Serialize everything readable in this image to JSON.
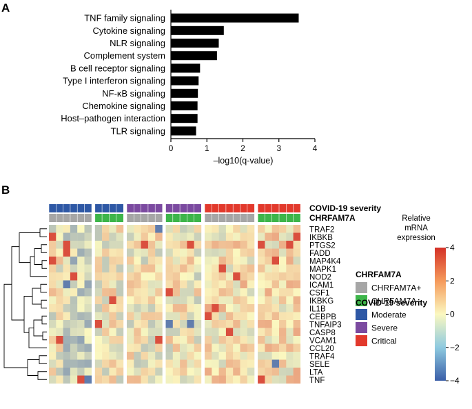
{
  "panel_a": {
    "label": "A",
    "chart_data": {
      "type": "bar",
      "orientation": "horizontal",
      "categories": [
        "TNF family signaling",
        "Cytokine signaling",
        "NLR signaling",
        "Complement system",
        "B cell receptor signaling",
        "Type I interferon signaling",
        "NF-κB signaling",
        "Chemokine signaling",
        "Host–pathogen interaction",
        "TLR signaling"
      ],
      "values": [
        3.55,
        1.47,
        1.33,
        1.28,
        0.81,
        0.77,
        0.75,
        0.74,
        0.74,
        0.7
      ],
      "xlabel": "–log10(q-value)",
      "xlim": [
        0,
        4
      ],
      "xticks": [
        "0",
        "1",
        "2",
        "3",
        "4"
      ],
      "bar_color": "#000000"
    }
  },
  "panel_b": {
    "label": "B",
    "chart_data": {
      "type": "heatmap",
      "genes": [
        "TRAF2",
        "IKBKB",
        "PTGS2",
        "FADD",
        "MAP4K4",
        "MAPK1",
        "NOD2",
        "ICAM1",
        "CSF1",
        "IKBKG",
        "IL1B",
        "CEBPB",
        "TNFAIP3",
        "CASP8",
        "VCAM1",
        "CCL20",
        "TRAF4",
        "SELE",
        "LTA",
        "TNF"
      ],
      "groups": [
        {
          "severity": "Moderate",
          "chrfam7a": "CHRFAM7A+",
          "n": 6
        },
        {
          "severity": "Moderate",
          "chrfam7a": "CHRFAM7A–",
          "n": 4
        },
        {
          "severity": "Severe",
          "chrfam7a": "CHRFAM7A+",
          "n": 5
        },
        {
          "severity": "Severe",
          "chrfam7a": "CHRFAM7A–",
          "n": 5
        },
        {
          "severity": "Critical",
          "chrfam7a": "CHRFAM7A+",
          "n": 7
        },
        {
          "severity": "Critical",
          "chrfam7a": "CHRFAM7A–",
          "n": 6
        }
      ],
      "color_scale": {
        "min": -4,
        "max": 4,
        "low": "#3a5ea8",
        "mid": "#fbf8c0",
        "high": "#d43127"
      },
      "colorbar_ticks": [
        "4",
        "2",
        "0",
        "−2",
        "−4"
      ]
    },
    "annotation_row_labels": {
      "severity": "COVID-19 severity",
      "chrfam7a": "CHRFAM7A"
    },
    "colorbar_title": [
      "Relative",
      "mRNA",
      "expression"
    ],
    "legend_chrfam7a": {
      "title": "CHRFAM7A",
      "items": [
        {
          "label": "CHRFAM7A+",
          "color": "#a6a6a6"
        },
        {
          "label": "CHRFAM7A–",
          "color": "#3db54a"
        }
      ]
    },
    "legend_severity": {
      "title": "COVID-19 severity",
      "items": [
        {
          "label": "Moderate",
          "color": "#2e58a5"
        },
        {
          "label": "Severe",
          "color": "#7b4aa0"
        },
        {
          "label": "Critical",
          "color": "#e2392c"
        }
      ]
    }
  }
}
